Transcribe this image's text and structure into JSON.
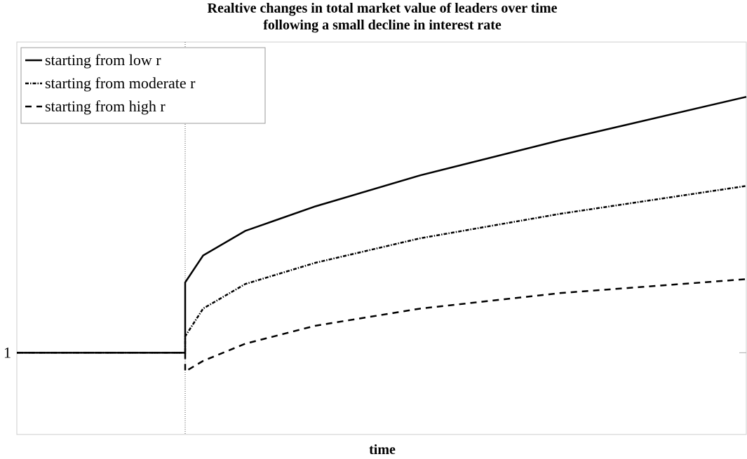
{
  "chart_data": {
    "type": "line",
    "title": "Realtive changes in total market value of leaders over time",
    "subtitle": "following a small decline in interest rate",
    "xlabel": "time",
    "x": [
      -0.3,
      0,
      0,
      0.032,
      0.107,
      0.232,
      0.419,
      0.669,
      1.0
    ],
    "series": [
      {
        "name": "starting from low r",
        "color": "#000000",
        "dash": "solid",
        "values": [
          1,
          1,
          1.086,
          1.119,
          1.149,
          1.179,
          1.217,
          1.26,
          1.313
        ]
      },
      {
        "name": "starting from moderate r",
        "color": "#000000",
        "dash": "dashdot",
        "values": [
          1,
          1,
          1.02,
          1.054,
          1.084,
          1.11,
          1.14,
          1.17,
          1.204
        ]
      },
      {
        "name": "starting from high r",
        "color": "#000000",
        "dash": "dashed",
        "values": [
          1,
          1,
          0.977,
          0.99,
          1.011,
          1.033,
          1.054,
          1.073,
          1.09
        ]
      }
    ],
    "xlim": [
      -0.3,
      1.0
    ],
    "ylim": [
      0.9,
      1.38
    ],
    "yticks": [
      1
    ],
    "vline": 0,
    "legend": "upper left",
    "grid": false
  }
}
